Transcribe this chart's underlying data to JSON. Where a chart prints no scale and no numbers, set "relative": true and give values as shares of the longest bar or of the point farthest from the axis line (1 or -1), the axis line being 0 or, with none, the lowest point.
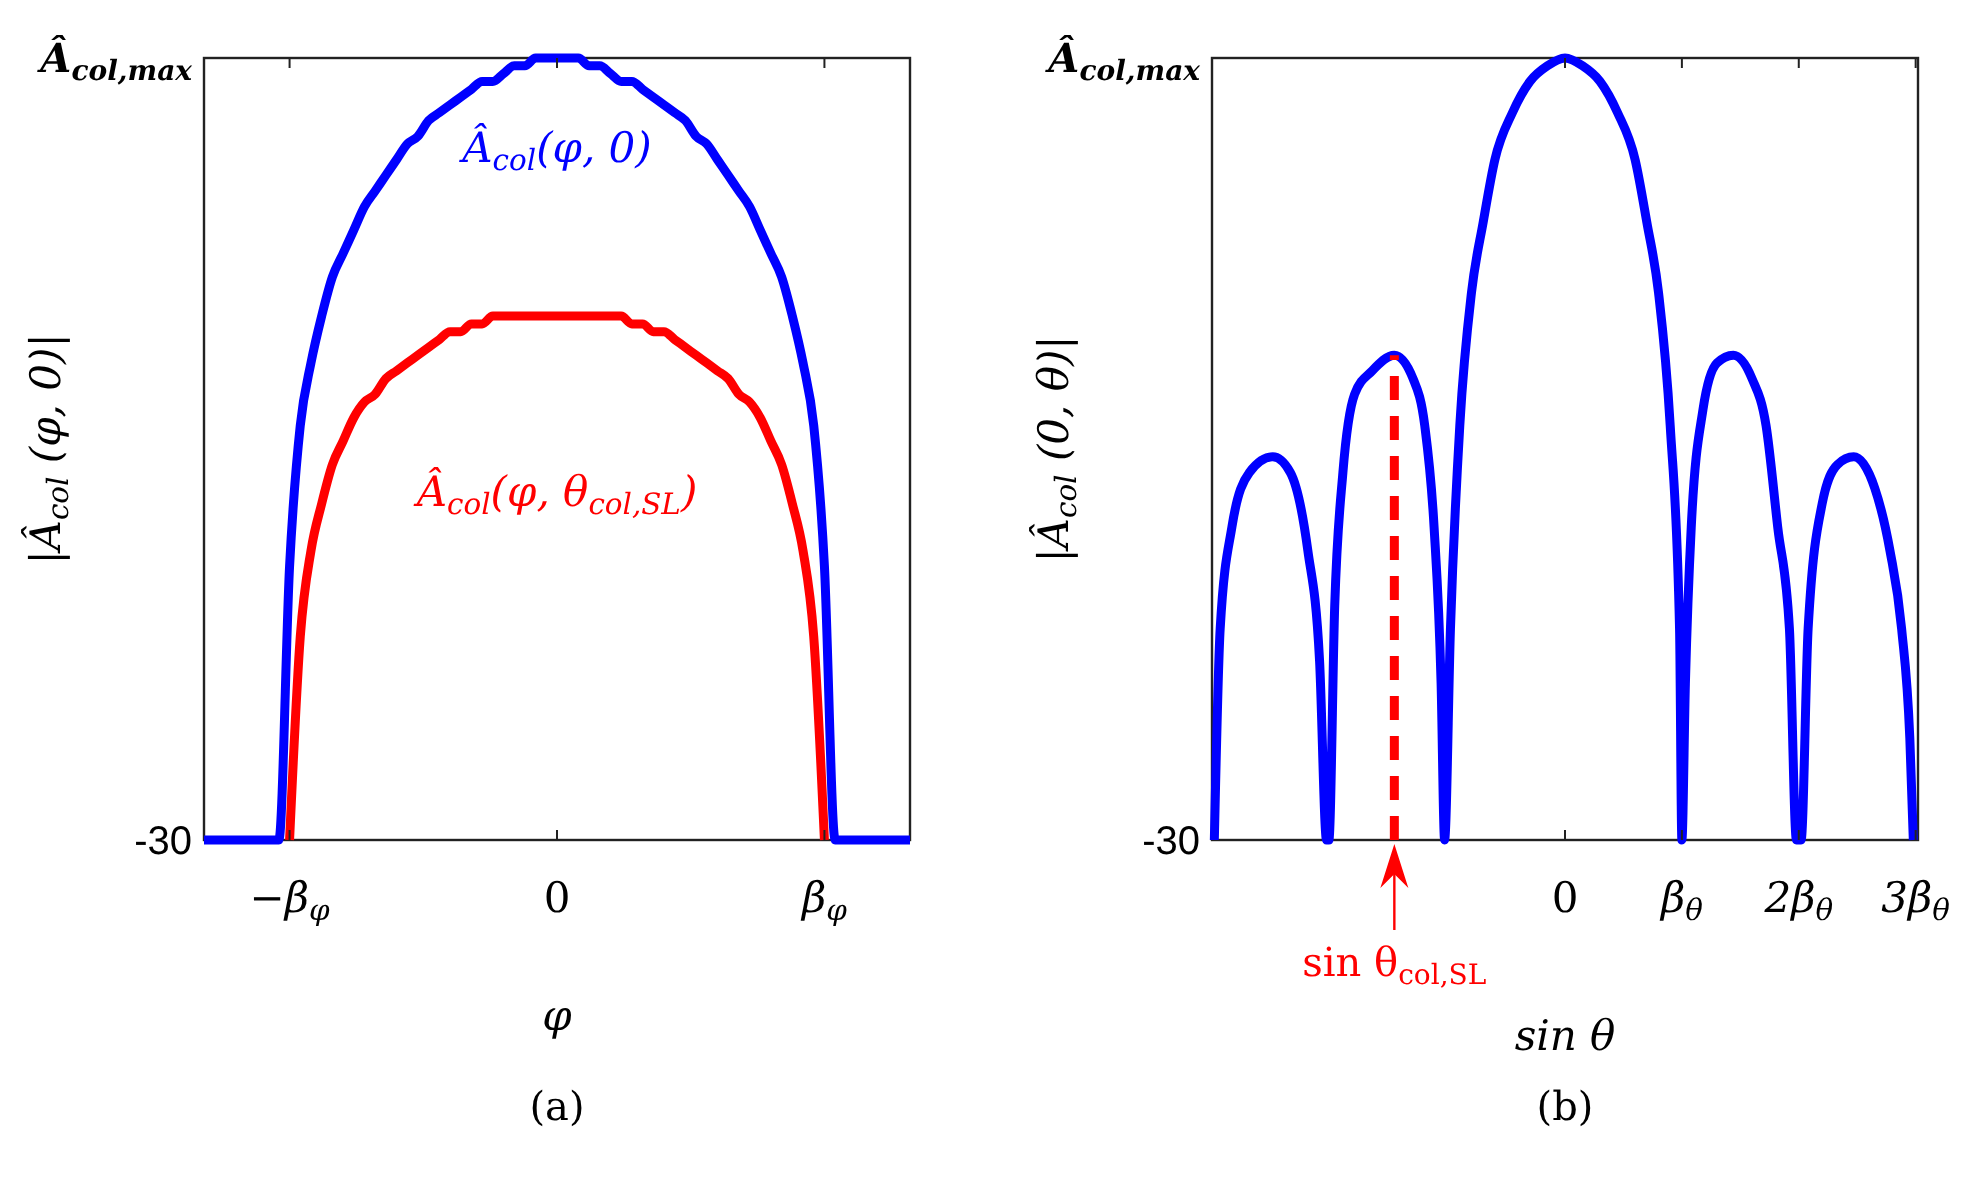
{
  "chart_data": [
    {
      "type": "line",
      "relative": true,
      "xlabel": "φ",
      "ylabel": "|Â$_{col}$ (φ, 0)|",
      "categories": [
        null,
        null,
        null,
        null,
        null,
        null,
        null,
        null,
        "−β$_{φ}$",
        null,
        null,
        null,
        null,
        null,
        null,
        null,
        null,
        null,
        null,
        null,
        null,
        null,
        null,
        null,
        null,
        null,
        null,
        null,
        null,
        null,
        null,
        null,
        null,
        "0",
        null,
        null,
        null,
        null,
        null,
        null,
        null,
        null,
        null,
        null,
        null,
        null,
        null,
        null,
        null,
        null,
        null,
        null,
        null,
        null,
        null,
        null,
        null,
        null,
        "β$_{φ}$",
        null,
        null,
        null,
        null,
        null,
        null,
        null,
        null
      ],
      "legend": false,
      "marker": "none",
      "line_style": "solid",
      "annotations": [
        "Â$_{col,max}$",
        "-30",
        "(a)"
      ],
      "series": [
        {
          "name": "Â$_{col}$(φ, 0)",
          "color": "#0000ff",
          "values": [
            0,
            0,
            0,
            0,
            0,
            0,
            0,
            0,
            0.35,
            0.53,
            0.61,
            0.67,
            0.72,
            0.75,
            0.78,
            0.81,
            0.83,
            0.85,
            0.87,
            0.89,
            0.9,
            0.92,
            0.93,
            0.94,
            0.95,
            0.96,
            0.97,
            0.97,
            0.98,
            0.99,
            0.99,
            1,
            1,
            1,
            1,
            1,
            0.99,
            0.99,
            0.98,
            0.97,
            0.97,
            0.96,
            0.95,
            0.94,
            0.93,
            0.92,
            0.9,
            0.89,
            0.87,
            0.85,
            0.83,
            0.81,
            0.78,
            0.75,
            0.72,
            0.67,
            0.61,
            0.53,
            0.35,
            0,
            0,
            0,
            0,
            0,
            0,
            0,
            0
          ]
        },
        {
          "name": "Â$_{col}$(φ, θ$_{col,SL}$)",
          "color": "#ff0000",
          "values": [
            null,
            null,
            null,
            null,
            null,
            null,
            null,
            null,
            0,
            0.26,
            0.37,
            0.43,
            0.48,
            0.51,
            0.54,
            0.56,
            0.57,
            0.59,
            0.6,
            0.61,
            0.62,
            0.63,
            0.64,
            0.65,
            0.65,
            0.66,
            0.66,
            0.67,
            0.67,
            0.67,
            0.67,
            0.67,
            0.67,
            0.67,
            0.67,
            0.67,
            0.67,
            0.67,
            0.67,
            0.67,
            0.66,
            0.66,
            0.65,
            0.65,
            0.64,
            0.63,
            0.62,
            0.61,
            0.6,
            0.59,
            0.57,
            0.56,
            0.54,
            0.51,
            0.48,
            0.43,
            0.37,
            0.26,
            0,
            null,
            null,
            null,
            null,
            null,
            null,
            null,
            null
          ]
        }
      ]
    },
    {
      "type": "line",
      "relative": true,
      "xlabel": "sin θ",
      "ylabel": "|Â$_{col}$ (0, θ)|",
      "xlim": [
        -3.02,
        3.02
      ],
      "xticks": [
        0,
        {
          "value": 1,
          "label": "β$_{θ}$"
        },
        {
          "value": 2,
          "label": "2β$_{θ}$"
        },
        {
          "value": 3,
          "label": "3β$_{θ}$"
        }
      ],
      "legend": false,
      "marker": "none",
      "line_style": "solid",
      "annotations": [
        "Â$_{col,max}$",
        "-30",
        {
          "text": "sin θ$_{col,SL}$",
          "x": -1.46,
          "y": 0
        },
        "(b)"
      ],
      "series": [
        {
          "color": "#0000ff",
          "x": [
            -3,
            -2.95,
            -2.85,
            -2.7,
            -2.5,
            -2.35,
            -2.2,
            -2.1,
            -2.04,
            -2.02,
            -1.97,
            -1.9,
            -1.8,
            -1.65,
            -1.46,
            -1.3,
            -1.2,
            -1.12,
            -1.06,
            -1.03,
            -0.98,
            -0.9,
            -0.8,
            -0.7,
            -0.6,
            -0.45,
            -0.3,
            -0.15,
            0,
            0.15,
            0.3,
            0.45,
            0.6,
            0.7,
            0.8,
            0.9,
            0.98,
            1.0,
            1.03,
            1.08,
            1.18,
            1.3,
            1.44,
            1.6,
            1.72,
            1.82,
            1.92,
            1.98,
            2.02,
            2.08,
            2.2,
            2.33,
            2.47,
            2.65,
            2.78,
            2.88,
            2.95,
            2.98
          ],
          "values": [
            0,
            0.27,
            0.4,
            0.47,
            0.49,
            0.47,
            0.37,
            0.23,
            0,
            0,
            0.3,
            0.47,
            0.57,
            0.6,
            0.62,
            0.59,
            0.53,
            0.4,
            0.2,
            0,
            0.27,
            0.53,
            0.7,
            0.79,
            0.87,
            0.93,
            0.97,
            0.99,
            1,
            0.99,
            0.97,
            0.93,
            0.87,
            0.79,
            0.7,
            0.53,
            0.27,
            0,
            0.2,
            0.4,
            0.55,
            0.61,
            0.62,
            0.59,
            0.53,
            0.4,
            0.27,
            0,
            0,
            0.27,
            0.43,
            0.48,
            0.49,
            0.45,
            0.37,
            0.27,
            0.13,
            0
          ]
        },
        {
          "type": "line",
          "color": "#ff0000",
          "line_style": "dashed",
          "x": [
            -1.46,
            -1.46
          ],
          "values": [
            0,
            0.62
          ]
        }
      ]
    }
  ]
}
